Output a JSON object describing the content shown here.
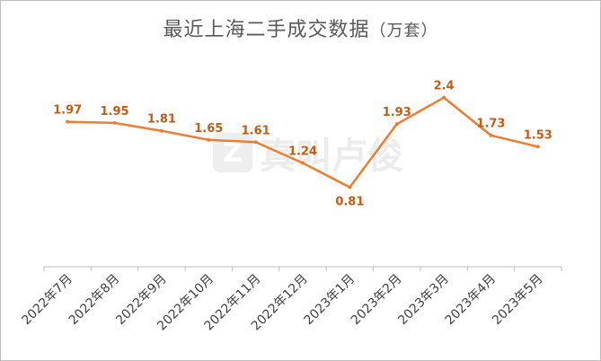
{
  "chart_data": {
    "type": "line",
    "title": "最近上海二手成交数据",
    "title_unit": "（万套）",
    "categories": [
      "2022年7月",
      "2022年8月",
      "2022年9月",
      "2022年10月",
      "2022年11月",
      "2022年12月",
      "2023年1月",
      "2023年2月",
      "2023年3月",
      "2023年4月",
      "2023年5月"
    ],
    "series": [
      {
        "values": [
          1.97,
          1.95,
          1.81,
          1.65,
          1.61,
          1.24,
          0.81,
          1.93,
          2.4,
          1.73,
          1.53
        ],
        "color": "#ed7d31"
      }
    ],
    "data_labels": [
      "1.97",
      "1.95",
      "1.81",
      "1.65",
      "1.61",
      "1.24",
      "0.81",
      "1.93",
      "2.4",
      "1.73",
      "1.53"
    ],
    "ylim": [
      -0.6,
      3.0
    ],
    "grid": false,
    "y_axis_visible": false,
    "label_color": "#c55a11"
  },
  "watermark": {
    "text": "真叫卢俊",
    "logo": "Z",
    "icon": "watermark-logo-icon"
  }
}
